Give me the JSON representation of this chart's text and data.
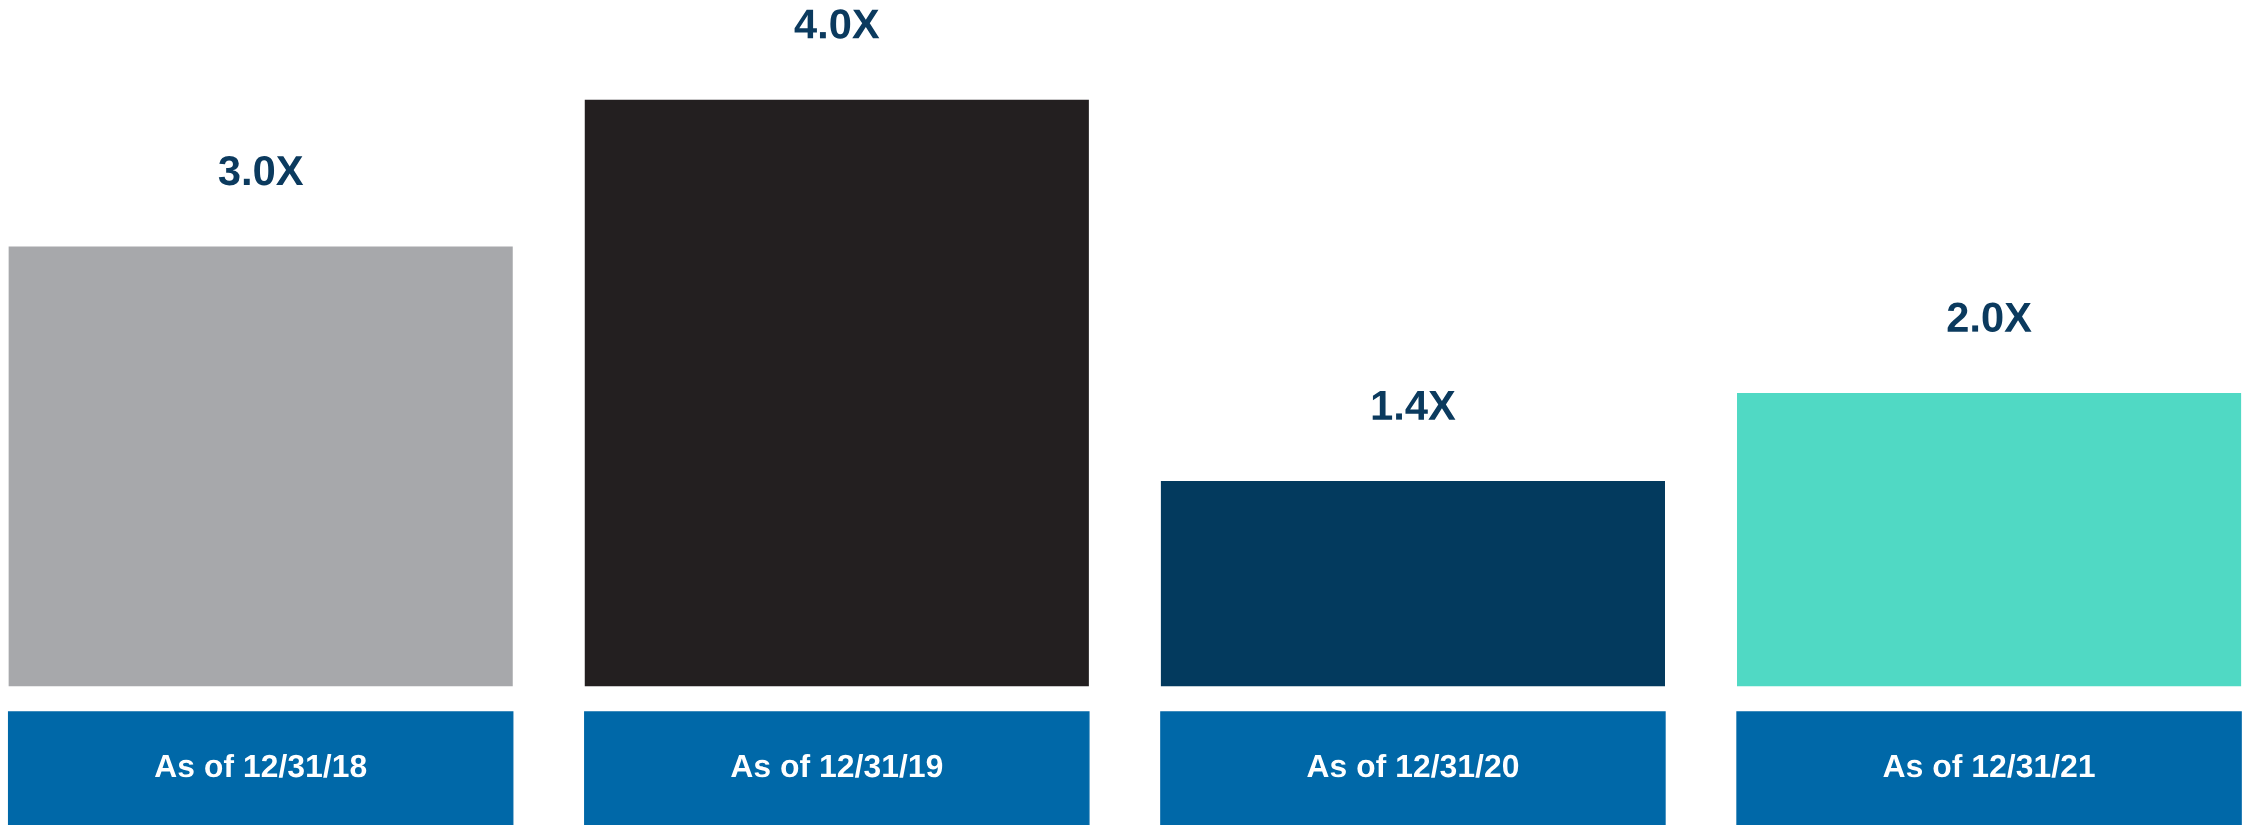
{
  "chart_data": {
    "type": "bar",
    "categories": [
      "As of 12/31/18",
      "As of 12/31/19",
      "As of 12/31/20",
      "As of 12/31/21"
    ],
    "values": [
      3.0,
      4.0,
      1.4,
      2.0
    ],
    "colors": [
      "#a7a8ab",
      "#231f20",
      "#033a5e",
      "#50d9c4"
    ],
    "value_labels": [
      "3.0X",
      "4.0X",
      "1.4X",
      "2.0X"
    ]
  }
}
